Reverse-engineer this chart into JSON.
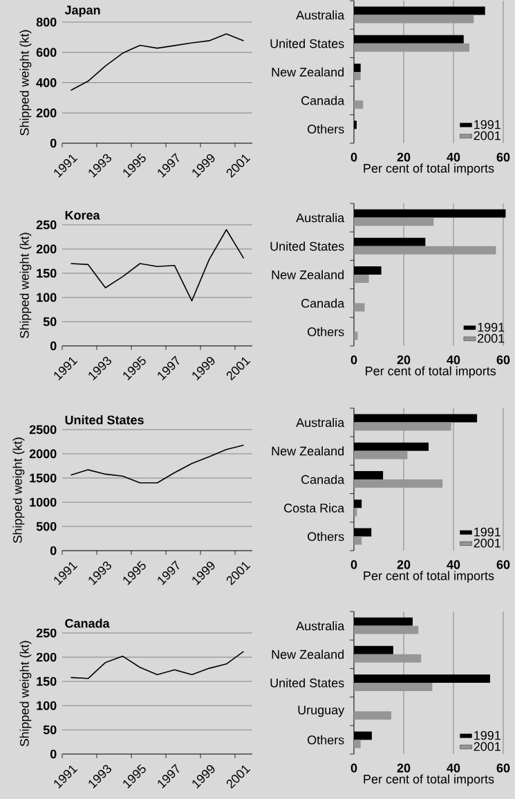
{
  "chart_data": [
    {
      "type": "line",
      "title": "Japan",
      "ylabel": "Shipped weight (kt)",
      "categories": [
        "1991",
        null,
        "1993",
        null,
        "1995",
        null,
        "1997",
        null,
        "1999",
        null,
        "2001"
      ],
      "values": [
        350,
        410,
        510,
        595,
        647,
        628,
        645,
        663,
        677,
        722,
        677
      ],
      "color": "#000000",
      "ylim": [
        0,
        800
      ],
      "yticks": [
        0,
        200,
        400,
        600,
        800
      ],
      "grid": "y",
      "marker": "none",
      "line_style": "solid"
    },
    {
      "type": "bar",
      "orientation": "horizontal",
      "xlabel": "Per cent of total imports",
      "categories": [
        "Australia",
        "United States",
        "New Zealand",
        "Canada",
        "Others"
      ],
      "series": [
        {
          "name": "1991",
          "color": "#000000",
          "values": [
            52.7,
            44.1,
            2.7,
            0,
            1.1
          ]
        },
        {
          "name": "2001",
          "color": "#969696",
          "values": [
            48.2,
            46.4,
            2.7,
            3.7,
            0
          ]
        }
      ],
      "xlim": [
        0,
        60
      ],
      "xticks": [
        0,
        20,
        40,
        60
      ],
      "grid": "x",
      "legend": "bottom right"
    },
    {
      "type": "line",
      "title": "Korea",
      "ylabel": "Shipped weight (kt)",
      "categories": [
        "1991",
        null,
        "1993",
        null,
        "1995",
        null,
        "1997",
        null,
        "1999",
        null,
        "2001"
      ],
      "values": [
        170,
        168,
        120,
        143,
        170,
        164,
        166,
        93,
        178,
        240,
        181
      ],
      "color": "#000000",
      "ylim": [
        0,
        250
      ],
      "yticks": [
        0,
        50,
        100,
        150,
        200,
        250
      ],
      "grid": "y",
      "marker": "none",
      "line_style": "solid"
    },
    {
      "type": "bar",
      "orientation": "horizontal",
      "xlabel": "Per cent of total imports",
      "categories": [
        "Australia",
        "United States",
        "New Zealand",
        "Canada",
        "Others"
      ],
      "series": [
        {
          "name": "1991",
          "color": "#000000",
          "values": [
            61,
            28.7,
            11,
            0,
            0
          ]
        },
        {
          "name": "2001",
          "color": "#969696",
          "values": [
            32,
            57.1,
            6,
            4.3,
            1.5
          ]
        }
      ],
      "xlim": [
        0,
        61.5
      ],
      "xticks": [
        0,
        20,
        40,
        60
      ],
      "grid": "x",
      "legend": "bottom right"
    },
    {
      "type": "line",
      "title": "United States",
      "ylabel": "Shipped weight (kt)",
      "categories": [
        "1991",
        null,
        "1993",
        null,
        "1995",
        null,
        "1997",
        null,
        "1999",
        null,
        "2001"
      ],
      "values": [
        1560,
        1670,
        1580,
        1540,
        1400,
        1400,
        1610,
        1800,
        1940,
        2090,
        2180
      ],
      "color": "#000000",
      "ylim": [
        0,
        2500
      ],
      "yticks": [
        0,
        500,
        1000,
        1500,
        2000,
        2500
      ],
      "grid": "y",
      "marker": "none",
      "line_style": "solid"
    },
    {
      "type": "bar",
      "orientation": "horizontal",
      "xlabel": "Per cent of total imports",
      "categories": [
        "Australia",
        "New Zealand",
        "Canada",
        "Costa Rica",
        "Others"
      ],
      "series": [
        {
          "name": "1991",
          "color": "#000000",
          "values": [
            49.5,
            30,
            11.7,
            3.1,
            7
          ]
        },
        {
          "name": "2001",
          "color": "#969696",
          "values": [
            39.1,
            21.5,
            35.6,
            1.2,
            3.1
          ]
        }
      ],
      "xlim": [
        0,
        60
      ],
      "xticks": [
        0,
        20,
        40,
        60
      ],
      "grid": "x",
      "legend": "bottom right"
    },
    {
      "type": "line",
      "title": "Canada",
      "ylabel": "Shipped weight (kt)",
      "categories": [
        "1991",
        null,
        "1993",
        null,
        "1995",
        null,
        "1997",
        null,
        "1999",
        null,
        "2001"
      ],
      "values": [
        158,
        156,
        189,
        202,
        179,
        164,
        174,
        164,
        177,
        186,
        212
      ],
      "color": "#000000",
      "ylim": [
        0,
        250
      ],
      "yticks": [
        0,
        50,
        100,
        150,
        200,
        250
      ],
      "grid": "y",
      "marker": "none",
      "line_style": "solid"
    },
    {
      "type": "bar",
      "orientation": "horizontal",
      "xlabel": "Per cent of total imports",
      "categories": [
        "Australia",
        "New Zealand",
        "United States",
        "Uruguay",
        "Others"
      ],
      "series": [
        {
          "name": "1991",
          "color": "#000000",
          "values": [
            23.6,
            15.8,
            54.7,
            0,
            7.2
          ]
        },
        {
          "name": "2001",
          "color": "#969696",
          "values": [
            25.9,
            27,
            31.5,
            15,
            2.7
          ]
        }
      ],
      "xlim": [
        0,
        60
      ],
      "xticks": [
        0,
        20,
        40,
        60
      ],
      "grid": "x",
      "legend": "bottom right"
    }
  ]
}
